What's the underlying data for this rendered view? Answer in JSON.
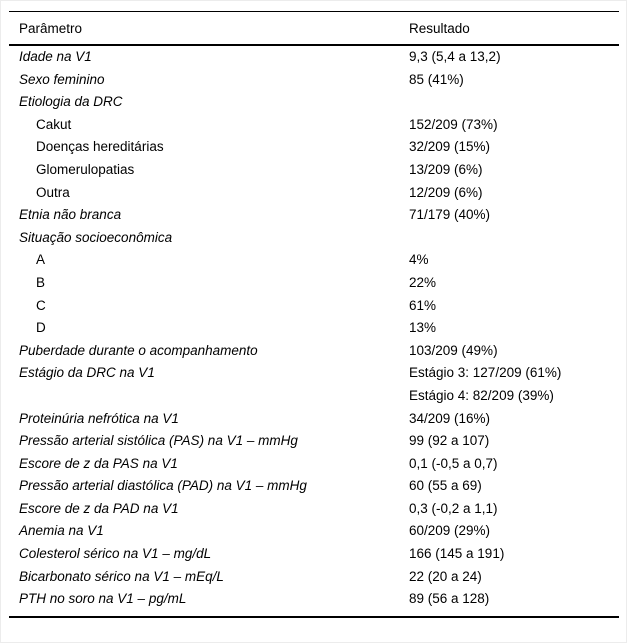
{
  "page": {
    "background": "#ffffff",
    "rule_color": "#000000",
    "text_color": "#000000"
  },
  "table": {
    "header": {
      "param": "Parâmetro",
      "result": "Resultado"
    },
    "rows": [
      {
        "label": "Idade na V1",
        "italic": true,
        "indent": false,
        "result": "9,3 (5,4 a 13,2)"
      },
      {
        "label": "Sexo feminino",
        "italic": true,
        "indent": false,
        "result": "85 (41%)"
      },
      {
        "label": "Etiologia da DRC",
        "italic": true,
        "indent": false,
        "result": ""
      },
      {
        "label": "Cakut",
        "italic": false,
        "indent": true,
        "result": "152/209 (73%)"
      },
      {
        "label": "Doenças hereditárias",
        "italic": false,
        "indent": true,
        "result": "32/209 (15%)"
      },
      {
        "label": "Glomerulopatias",
        "italic": false,
        "indent": true,
        "result": "13/209 (6%)"
      },
      {
        "label": "Outra",
        "italic": false,
        "indent": true,
        "result": "12/209 (6%)"
      },
      {
        "label": "Etnia não branca",
        "italic": true,
        "indent": false,
        "result": "71/179 (40%)"
      },
      {
        "label": "Situação socioeconômica",
        "italic": true,
        "indent": false,
        "result": ""
      },
      {
        "label": "A",
        "italic": false,
        "indent": true,
        "result": "4%"
      },
      {
        "label": "B",
        "italic": false,
        "indent": true,
        "result": "22%"
      },
      {
        "label": "C",
        "italic": false,
        "indent": true,
        "result": "61%"
      },
      {
        "label": "D",
        "italic": false,
        "indent": true,
        "result": "13%"
      },
      {
        "label": "Puberdade durante o acompanhamento",
        "italic": true,
        "indent": false,
        "result": "103/209 (49%)"
      },
      {
        "label": "Estágio da DRC na V1",
        "italic": true,
        "indent": false,
        "result": "Estágio 3: 127/209 (61%)\nEstágio 4: 82/209 (39%)"
      },
      {
        "label": "Proteinúria nefrótica na V1",
        "italic": true,
        "indent": false,
        "result": "34/209 (16%)"
      },
      {
        "label": "Pressão arterial sistólica (PAS) na V1 – mmHg",
        "italic": true,
        "indent": false,
        "result": "99 (92 a 107)"
      },
      {
        "label": "Escore de z da PAS na V1",
        "italic": true,
        "indent": false,
        "result": "0,1 (-0,5 a 0,7)"
      },
      {
        "label": "Pressão arterial diastólica (PAD) na V1 – mmHg",
        "italic": true,
        "indent": false,
        "result": "60 (55 a 69)"
      },
      {
        "label": "Escore de z da PAD na V1",
        "italic": true,
        "indent": false,
        "result": "0,3 (-0,2 a 1,1)"
      },
      {
        "label": "Anemia na V1",
        "italic": true,
        "indent": false,
        "result": "60/209 (29%)"
      },
      {
        "label": "Colesterol sérico na V1 – mg/dL",
        "italic": true,
        "indent": false,
        "result": "166 (145 a 191)"
      },
      {
        "label": "Bicarbonato sérico na V1 – mEq/L",
        "italic": true,
        "indent": false,
        "result": "22 (20 a 24)"
      },
      {
        "label": "PTH no soro na V1 – pg/mL",
        "italic": true,
        "indent": false,
        "result": "89 (56 a 128)"
      }
    ]
  },
  "chart_data": {
    "type": "table",
    "title": "",
    "columns": [
      "Parâmetro",
      "Resultado"
    ],
    "rows": [
      [
        "Idade na V1",
        "9,3 (5,4 a 13,2)"
      ],
      [
        "Sexo feminino",
        "85 (41%)"
      ],
      [
        "Etiologia da DRC",
        ""
      ],
      [
        "Cakut",
        "152/209 (73%)"
      ],
      [
        "Doenças hereditárias",
        "32/209 (15%)"
      ],
      [
        "Glomerulopatias",
        "13/209 (6%)"
      ],
      [
        "Outra",
        "12/209 (6%)"
      ],
      [
        "Etnia não branca",
        "71/179 (40%)"
      ],
      [
        "Situação socioeconômica",
        ""
      ],
      [
        "A",
        "4%"
      ],
      [
        "B",
        "22%"
      ],
      [
        "C",
        "61%"
      ],
      [
        "D",
        "13%"
      ],
      [
        "Puberdade durante o acompanhamento",
        "103/209 (49%)"
      ],
      [
        "Estágio da DRC na V1",
        "Estágio 3: 127/209 (61%); Estágio 4: 82/209 (39%)"
      ],
      [
        "Proteinúria nefrótica na V1",
        "34/209 (16%)"
      ],
      [
        "Pressão arterial sistólica (PAS) na V1 – mmHg",
        "99 (92 a 107)"
      ],
      [
        "Escore de z da PAS na V1",
        "0,1 (-0,5 a 0,7)"
      ],
      [
        "Pressão arterial diastólica (PAD) na V1 – mmHg",
        "60 (55 a 69)"
      ],
      [
        "Escore de z da PAD na V1",
        "0,3 (-0,2 a 1,1)"
      ],
      [
        "Anemia na V1",
        "60/209 (29%)"
      ],
      [
        "Colesterol sérico na V1 – mg/dL",
        "166 (145 a 191)"
      ],
      [
        "Bicarbonato sérico na V1 – mEq/L",
        "22 (20 a 24)"
      ],
      [
        "PTH no soro na V1 – pg/mL",
        "89 (56 a 128)"
      ]
    ]
  }
}
